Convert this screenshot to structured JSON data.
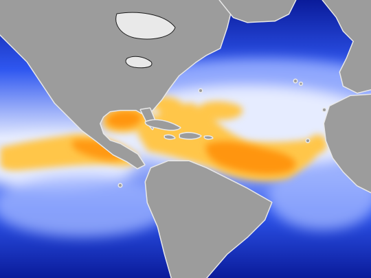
{
  "map": {
    "colors": {
      "deep_ocean": "#0a1b9a",
      "ocean_mid": "#2f57f0",
      "ocean_light": "#9fb4ff",
      "pale_band": "#e6ecff",
      "warm_band": "#ffc64a",
      "hot_core": "#ff8a00",
      "land": "#9c9c9c",
      "coast_outline": "#e9e9e9",
      "land_border": "#1a1a1a"
    },
    "regions": [
      "north-america",
      "greenland",
      "south-america",
      "europe",
      "africa",
      "caribbean-islands",
      "atlantic-ocean",
      "pacific-ocean",
      "gulf-of-mexico"
    ]
  }
}
